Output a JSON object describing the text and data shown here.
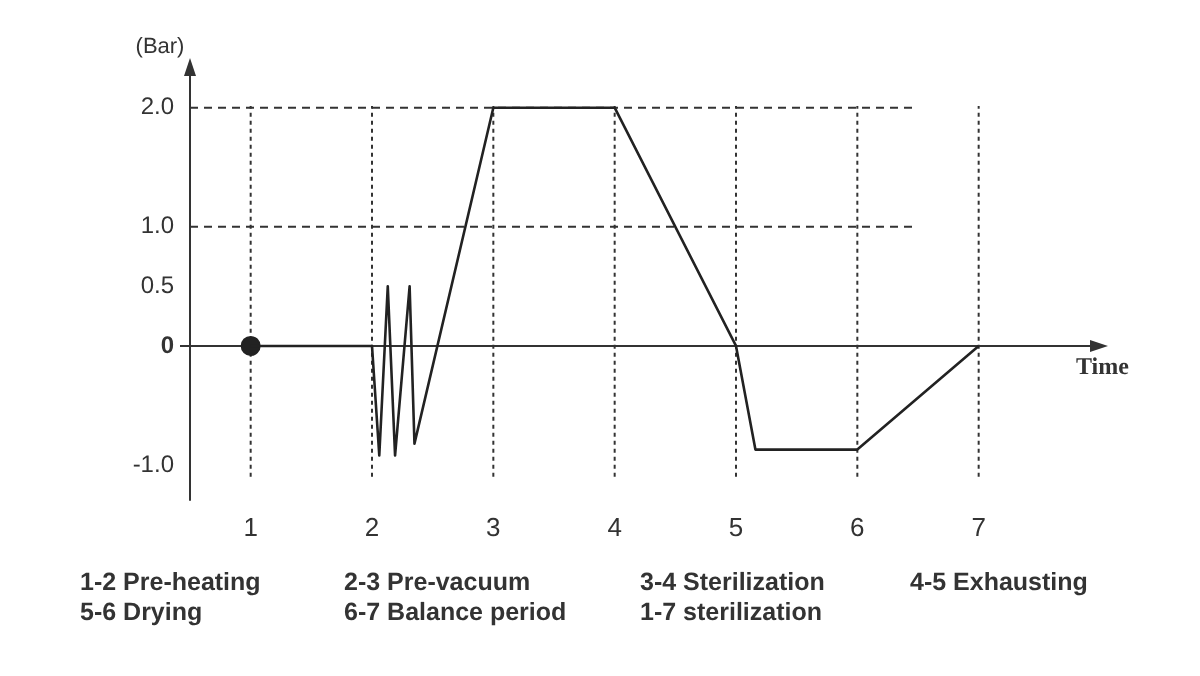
{
  "chart_data": {
    "type": "line",
    "ylabel": "(Bar)",
    "xlabel": "Time",
    "series": [
      {
        "color": "#222222",
        "marker": "none",
        "x": [
          1,
          2,
          2.06,
          2.13,
          2.19,
          2.31,
          2.35,
          3,
          4,
          5,
          5.16,
          6,
          7
        ],
        "values": [
          0,
          0,
          -0.92,
          0.5,
          -0.92,
          0.5,
          -0.82,
          2.0,
          2.0,
          0,
          -0.87,
          -0.87,
          0
        ]
      },
      {
        "type": "scatter",
        "color": "#222222",
        "marker": "circle",
        "x": [
          1
        ],
        "values": [
          0
        ]
      }
    ],
    "xlim": [
      0.5,
      8
    ],
    "ylim": [
      -1.3,
      2.35
    ],
    "xticks": [
      1,
      2,
      3,
      4,
      5,
      6,
      7
    ],
    "yticks": [
      {
        "value": -1.0,
        "label": "-1.0"
      },
      {
        "value": 0,
        "label": "0"
      },
      {
        "value": 0.5,
        "label": "0.5"
      },
      {
        "value": 1.0,
        "label": "1.0"
      },
      {
        "value": 2.0,
        "label": "2.0"
      }
    ],
    "ref_lines": [
      {
        "axis": "y",
        "value": 2.0,
        "line_style": "dashed"
      },
      {
        "axis": "y",
        "value": 1.0,
        "line_style": "dashed"
      },
      {
        "axis": "x",
        "value": 1,
        "line_style": "dotted"
      },
      {
        "axis": "x",
        "value": 2,
        "line_style": "dotted"
      },
      {
        "axis": "x",
        "value": 3,
        "line_style": "dotted"
      },
      {
        "axis": "x",
        "value": 4,
        "line_style": "dotted"
      },
      {
        "axis": "x",
        "value": 5,
        "line_style": "dotted"
      },
      {
        "axis": "x",
        "value": 6,
        "line_style": "dotted"
      },
      {
        "axis": "x",
        "value": 7,
        "line_style": "dotted"
      }
    ],
    "grid": false,
    "legend": false,
    "annotations": [
      "1-2 Pre-heating",
      "2-3 Pre-vacuum",
      "3-4 Sterilization",
      "4-5 Exhausting",
      "5-6 Drying",
      "6-7 Balance period",
      "1-7 sterilization"
    ]
  }
}
